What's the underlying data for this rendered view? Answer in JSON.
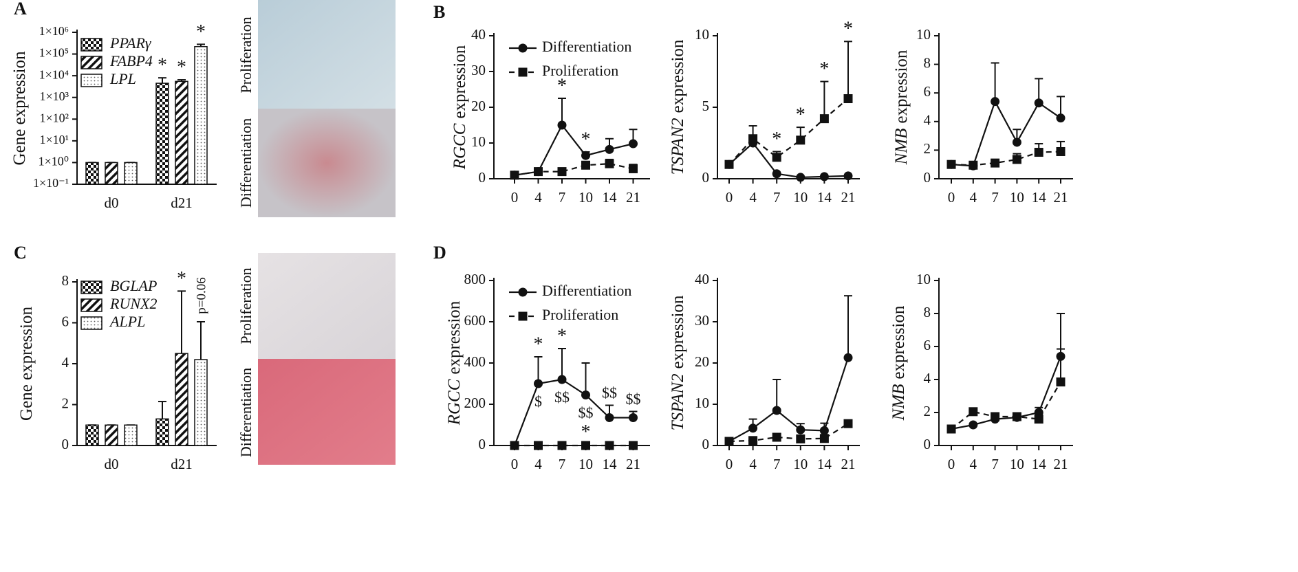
{
  "chart_data": [
    {
      "type": "bar",
      "panel": "A",
      "ylabel": "Gene expression",
      "log": true,
      "categories": [
        "d0",
        "d21"
      ],
      "ylim": [
        0.1,
        1000000
      ],
      "yticks": [
        {
          "value": 0.1,
          "label": "1×10⁻¹"
        },
        {
          "value": 1,
          "label": "1×10⁰"
        },
        {
          "value": 10,
          "label": "1×10¹"
        },
        {
          "value": 100,
          "label": "1×10²"
        },
        {
          "value": 1000,
          "label": "1×10³"
        },
        {
          "value": 10000,
          "label": "1×10⁴"
        },
        {
          "value": 100000,
          "label": "1×10⁵"
        },
        {
          "value": 1000000,
          "label": "1×10⁶"
        }
      ],
      "series": [
        {
          "name": "PPARγ",
          "pattern": "checker",
          "values": [
            1,
            4500
          ],
          "errors": [
            0,
            3500
          ]
        },
        {
          "name": "FABP4",
          "pattern": "hatch",
          "values": [
            1,
            5500
          ],
          "errors": [
            0,
            1000
          ]
        },
        {
          "name": "LPL",
          "pattern": "dots",
          "values": [
            1,
            220000
          ],
          "errors": [
            0,
            60000
          ]
        }
      ],
      "annotations": [
        {
          "series": 0,
          "index": 1,
          "text": "*"
        },
        {
          "series": 1,
          "index": 1,
          "text": "*"
        },
        {
          "series": 2,
          "index": 1,
          "text": "*"
        }
      ]
    },
    {
      "type": "line",
      "panel": "B",
      "ylabel_italic": "RGCC",
      "ylabel": "expression",
      "legend": true,
      "categories": [
        "0",
        "4",
        "7",
        "10",
        "14",
        "21"
      ],
      "ylim": [
        0,
        40
      ],
      "yticks": [
        0,
        10,
        20,
        30,
        40
      ],
      "series": [
        {
          "name": "Differentiation",
          "marker": "circle",
          "dashed": false,
          "values": [
            1,
            2,
            15,
            6.5,
            8.2,
            9.8
          ],
          "errors": [
            0,
            0,
            7.5,
            1,
            3,
            4
          ]
        },
        {
          "name": "Proliferation",
          "marker": "square",
          "dashed": true,
          "values": [
            1,
            2,
            2,
            3.8,
            4.2,
            2.8
          ],
          "errors": [
            0,
            0,
            0,
            0.5,
            1.2,
            1.2
          ]
        }
      ],
      "annotations": [
        {
          "series": 0,
          "index": 2,
          "text": "*",
          "side": "above"
        },
        {
          "series": 0,
          "index": 3,
          "text": "*",
          "side": "above"
        }
      ]
    },
    {
      "type": "line",
      "ylabel_italic": "TSPAN2",
      "ylabel": "expression",
      "legend": false,
      "categories": [
        "0",
        "4",
        "7",
        "10",
        "14",
        "21"
      ],
      "ylim": [
        0,
        10
      ],
      "yticks": [
        0,
        5,
        10
      ],
      "series": [
        {
          "marker": "circle",
          "dashed": false,
          "values": [
            1,
            2.5,
            0.35,
            0.1,
            0.15,
            0.2
          ],
          "errors": [
            0,
            0,
            0,
            0,
            0,
            0
          ]
        },
        {
          "marker": "square",
          "dashed": true,
          "values": [
            1,
            2.8,
            1.5,
            2.7,
            4.2,
            5.6
          ],
          "errors": [
            0,
            0.9,
            0.4,
            0.9,
            2.6,
            4
          ]
        }
      ],
      "annotations": [
        {
          "series": 1,
          "index": 2,
          "text": "*",
          "side": "above"
        },
        {
          "series": 1,
          "index": 3,
          "text": "*",
          "side": "above"
        },
        {
          "series": 1,
          "index": 4,
          "text": "*",
          "side": "above"
        },
        {
          "series": 1,
          "index": 5,
          "text": "*",
          "side": "above"
        }
      ]
    },
    {
      "type": "line",
      "ylabel_italic": "NMB",
      "ylabel": "expression",
      "legend": false,
      "categories": [
        "0",
        "4",
        "7",
        "10",
        "14",
        "21"
      ],
      "ylim": [
        0,
        10
      ],
      "yticks": [
        0,
        2,
        4,
        6,
        8,
        10
      ],
      "series": [
        {
          "marker": "circle",
          "dashed": false,
          "values": [
            1,
            0.9,
            5.4,
            2.55,
            5.3,
            4.25
          ],
          "errors": [
            0,
            0,
            2.7,
            0.9,
            1.7,
            1.5
          ]
        },
        {
          "marker": "square",
          "dashed": true,
          "values": [
            1,
            0.95,
            1.1,
            1.35,
            1.85,
            1.9
          ],
          "errors": [
            0,
            0,
            0,
            0.4,
            0.6,
            0.7
          ]
        }
      ]
    },
    {
      "type": "bar",
      "panel": "C",
      "ylabel": "Gene expression",
      "log": false,
      "categories": [
        "d0",
        "d21"
      ],
      "ylim": [
        0,
        8
      ],
      "yticks": [
        0,
        2,
        4,
        6,
        8
      ],
      "series": [
        {
          "name": "BGLAP",
          "pattern": "checker",
          "values": [
            1,
            1.3
          ],
          "errors": [
            0,
            0.85
          ]
        },
        {
          "name": "RUNX2",
          "pattern": "hatch",
          "values": [
            1,
            4.5
          ],
          "errors": [
            0,
            3.05
          ]
        },
        {
          "name": "ALPL",
          "pattern": "dots",
          "values": [
            1,
            4.2
          ],
          "errors": [
            0,
            1.85
          ]
        }
      ],
      "annotations": [
        {
          "series": 1,
          "index": 1,
          "text": "*"
        },
        {
          "series": 2,
          "index": 1,
          "text": "p=0.06",
          "rotate": true
        }
      ]
    },
    {
      "type": "line",
      "panel": "D",
      "ylabel_italic": "RGCC",
      "ylabel": "expression",
      "legend": true,
      "categories": [
        "0",
        "4",
        "7",
        "10",
        "14",
        "21"
      ],
      "ylim": [
        0,
        800
      ],
      "yticks": [
        0,
        200,
        400,
        600,
        800
      ],
      "series": [
        {
          "name": "Differentiation",
          "marker": "circle",
          "dashed": false,
          "values": [
            0,
            300,
            320,
            245,
            135,
            135
          ],
          "errors": [
            0,
            130,
            150,
            155,
            60,
            30
          ]
        },
        {
          "name": "Proliferation",
          "marker": "square",
          "dashed": true,
          "values": [
            0,
            0,
            0,
            0,
            0,
            0
          ],
          "errors": [
            0,
            0,
            0,
            0,
            0,
            0
          ]
        }
      ],
      "annotations": [
        {
          "series": 0,
          "index": 1,
          "text": "*",
          "side": "above"
        },
        {
          "series": 0,
          "index": 2,
          "text": "*",
          "side": "above"
        },
        {
          "series": 0,
          "index": 1,
          "text": "$",
          "side": "below"
        },
        {
          "series": 0,
          "index": 2,
          "text": "$$",
          "side": "below"
        },
        {
          "series": 0,
          "index": 3,
          "text": "$$",
          "side": "below"
        },
        {
          "series": 0,
          "index": 3,
          "text": "*",
          "side": "below2"
        },
        {
          "series": 0,
          "index": 4,
          "text": "$$",
          "side": "above"
        },
        {
          "series": 0,
          "index": 5,
          "text": "$$",
          "side": "above"
        }
      ]
    },
    {
      "type": "line",
      "ylabel_italic": "TSPAN2",
      "ylabel": "expression",
      "legend": false,
      "categories": [
        "0",
        "4",
        "7",
        "10",
        "14",
        "21"
      ],
      "ylim": [
        0,
        40
      ],
      "yticks": [
        0,
        10,
        20,
        30,
        40
      ],
      "series": [
        {
          "marker": "circle",
          "dashed": false,
          "values": [
            1,
            4.2,
            8.5,
            3.8,
            3.6,
            21.3
          ],
          "errors": [
            0,
            2.2,
            7.5,
            1.5,
            1.8,
            15
          ]
        },
        {
          "marker": "square",
          "dashed": true,
          "values": [
            1,
            1.2,
            2,
            1.6,
            1.7,
            5.3
          ],
          "errors": [
            0,
            0,
            0,
            0,
            0,
            0
          ]
        }
      ]
    },
    {
      "type": "line",
      "ylabel_italic": "NMB",
      "ylabel": "expression",
      "legend": false,
      "categories": [
        "0",
        "4",
        "7",
        "10",
        "14",
        "21"
      ],
      "ylim": [
        0,
        10
      ],
      "yticks": [
        0,
        2,
        4,
        6,
        8,
        10
      ],
      "series": [
        {
          "marker": "circle",
          "dashed": false,
          "values": [
            1,
            1.25,
            1.6,
            1.7,
            2,
            5.4
          ],
          "errors": [
            0,
            0,
            0,
            0,
            0.3,
            2.6
          ]
        },
        {
          "marker": "square",
          "dashed": true,
          "values": [
            1,
            2.05,
            1.75,
            1.75,
            1.6,
            3.85
          ],
          "errors": [
            0,
            0,
            0,
            0,
            0.35,
            2
          ]
        }
      ]
    }
  ],
  "images": [
    {
      "labels": [
        "Proliferation",
        "Differentiation"
      ]
    },
    {
      "labels": [
        "Proliferation",
        "Differentiation"
      ]
    }
  ]
}
